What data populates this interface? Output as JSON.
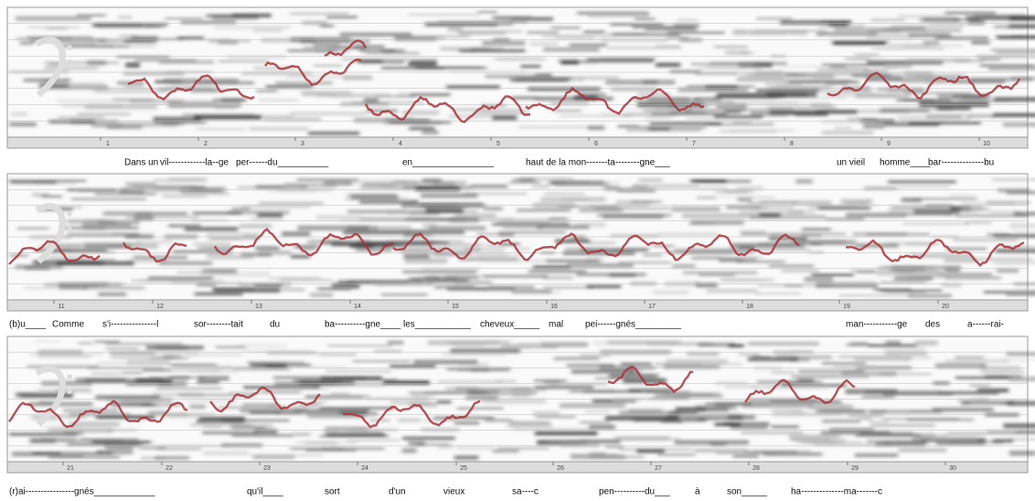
{
  "strips": [
    {
      "ticks": [
        1,
        2,
        3,
        4,
        5,
        6,
        7,
        8,
        9,
        10
      ],
      "lyrics": [
        "Dans un",
        "vil------------la--ge",
        "per------du__________",
        "en________________",
        "haut de la mon-------ta--------gne___",
        "un vieil",
        "homme____",
        "bar--------------bu"
      ]
    },
    {
      "ticks": [
        11,
        12,
        13,
        14,
        15,
        16,
        17,
        18,
        19,
        20
      ],
      "lyrics": [
        "(b)u____",
        "Comme",
        "s'i---------------l",
        "sor--------tait",
        "du",
        "ba----------gne____",
        "les___________",
        "cheveux_____",
        "mal",
        "pei------gnés_________",
        "man-----------ge",
        "des",
        "a------rai-"
      ]
    },
    {
      "ticks": [
        21,
        22,
        23,
        24,
        25,
        26,
        27,
        28,
        29,
        30
      ],
      "lyrics": [
        "(r)ai----------------gnés____________",
        "qu'il____",
        "sort",
        "d'un",
        "vieux",
        "sa----c",
        "pen----------du___",
        "à",
        "son_____",
        "ha--------------ma-------c"
      ]
    }
  ]
}
